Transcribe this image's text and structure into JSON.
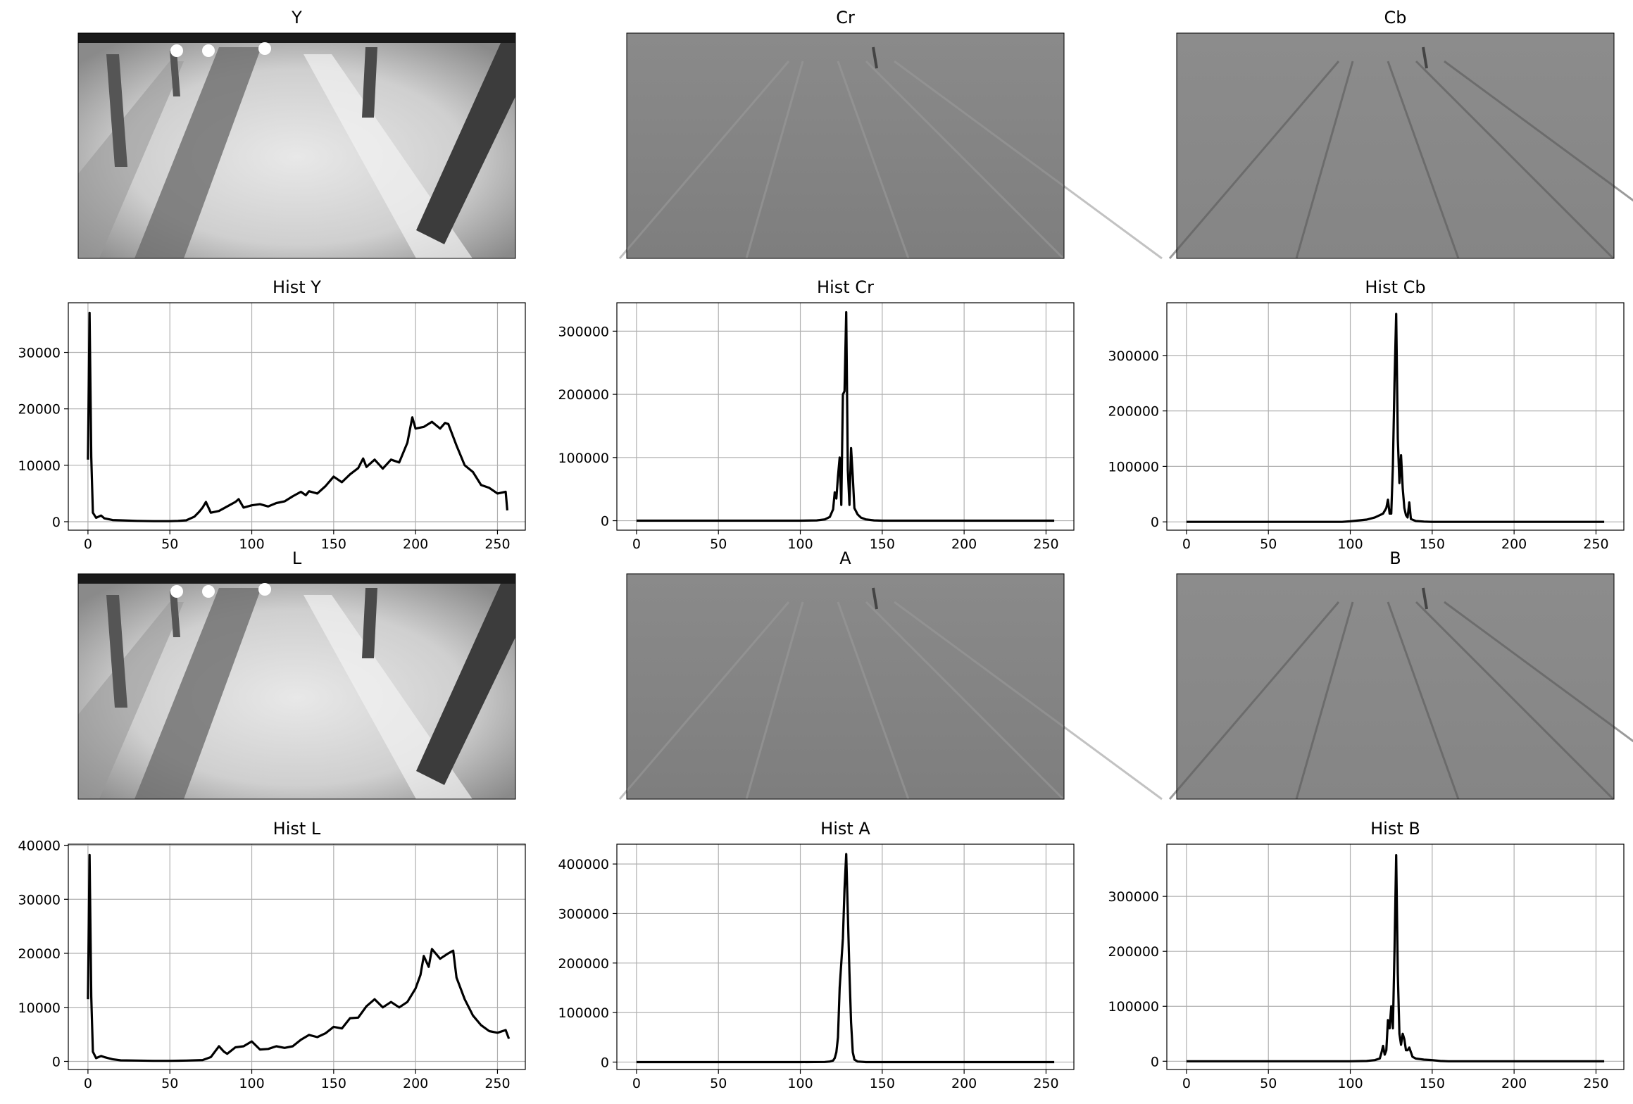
{
  "figure": {
    "image_panels": [
      {
        "title": "Y",
        "kind": "luma"
      },
      {
        "title": "Cr",
        "kind": "chroma"
      },
      {
        "title": "Cb",
        "kind": "chroma-b"
      },
      {
        "title": "L",
        "kind": "luma"
      },
      {
        "title": "A",
        "kind": "chroma"
      },
      {
        "title": "B",
        "kind": "chroma-b"
      }
    ]
  },
  "chart_data": [
    {
      "type": "line",
      "title": "Hist Y",
      "xlabel": "",
      "ylabel": "",
      "xlim": [
        -12,
        267
      ],
      "ylim": [
        -1500,
        38800
      ],
      "xticks": [
        0,
        50,
        100,
        150,
        200,
        250
      ],
      "yticks": [
        0,
        10000,
        20000,
        30000
      ],
      "grid": true,
      "line_color": "#000000",
      "x": [
        0,
        1,
        2,
        3,
        5,
        8,
        10,
        15,
        20,
        30,
        40,
        50,
        55,
        60,
        65,
        68,
        70,
        72,
        75,
        80,
        85,
        90,
        92,
        95,
        100,
        105,
        110,
        115,
        120,
        125,
        130,
        133,
        135,
        140,
        145,
        150,
        155,
        160,
        165,
        168,
        170,
        175,
        180,
        185,
        190,
        195,
        198,
        200,
        205,
        210,
        215,
        218,
        220,
        225,
        230,
        235,
        240,
        245,
        250,
        255,
        256
      ],
      "y": [
        11000,
        37000,
        11500,
        1600,
        700,
        1100,
        600,
        300,
        250,
        150,
        100,
        100,
        150,
        250,
        900,
        1800,
        2500,
        3500,
        1600,
        1900,
        2700,
        3500,
        4000,
        2500,
        2900,
        3100,
        2700,
        3300,
        3600,
        4500,
        5300,
        4700,
        5400,
        5000,
        6300,
        8000,
        7000,
        8400,
        9500,
        11200,
        9700,
        11000,
        9400,
        11000,
        10500,
        14000,
        18500,
        16500,
        16800,
        17700,
        16500,
        17500,
        17300,
        13500,
        10000,
        8800,
        6500,
        6000,
        5000,
        5300,
        2000
      ]
    },
    {
      "type": "line",
      "title": "Hist Cr",
      "xlabel": "",
      "ylabel": "",
      "xlim": [
        -12,
        267
      ],
      "ylim": [
        -15000,
        345000
      ],
      "xticks": [
        0,
        50,
        100,
        150,
        200,
        250
      ],
      "yticks": [
        0,
        100000,
        200000,
        300000
      ],
      "grid": true,
      "line_color": "#000000",
      "x": [
        0,
        50,
        100,
        110,
        115,
        118,
        120,
        121,
        122,
        123,
        124,
        125,
        126,
        127,
        128,
        129,
        130,
        131,
        132,
        133,
        135,
        137,
        140,
        145,
        150,
        200,
        255
      ],
      "y": [
        0,
        0,
        0,
        500,
        2000,
        6000,
        18000,
        45000,
        35000,
        70000,
        100000,
        25000,
        200000,
        205000,
        330000,
        80000,
        25000,
        115000,
        70000,
        20000,
        10000,
        5000,
        2000,
        500,
        0,
        0,
        0
      ]
    },
    {
      "type": "line",
      "title": "Hist Cb",
      "xlabel": "",
      "ylabel": "",
      "xlim": [
        -12,
        267
      ],
      "ylim": [
        -15000,
        395000
      ],
      "xticks": [
        0,
        50,
        100,
        150,
        200,
        250
      ],
      "yticks": [
        0,
        100000,
        200000,
        300000
      ],
      "grid": true,
      "line_color": "#000000",
      "x": [
        0,
        50,
        95,
        100,
        110,
        115,
        118,
        120,
        122,
        123,
        124,
        125,
        126,
        127,
        128,
        129,
        130,
        131,
        132,
        133,
        134,
        135,
        136,
        137,
        140,
        145,
        150,
        200,
        255
      ],
      "y": [
        0,
        0,
        0,
        1000,
        4000,
        8000,
        12000,
        15000,
        25000,
        40000,
        15000,
        15000,
        100000,
        250000,
        375000,
        150000,
        70000,
        120000,
        60000,
        25000,
        12000,
        8000,
        35000,
        5000,
        1500,
        500,
        0,
        0,
        0
      ]
    },
    {
      "type": "line",
      "title": "Hist L",
      "xlabel": "",
      "ylabel": "",
      "xlim": [
        -12,
        267
      ],
      "ylim": [
        -1500,
        40200
      ],
      "xticks": [
        0,
        50,
        100,
        150,
        200,
        250
      ],
      "yticks": [
        0,
        10000,
        20000,
        30000,
        40000
      ],
      "grid": true,
      "line_color": "#000000",
      "x": [
        0,
        1,
        2,
        3,
        5,
        8,
        10,
        15,
        20,
        30,
        40,
        50,
        60,
        70,
        75,
        78,
        80,
        83,
        85,
        90,
        95,
        100,
        105,
        110,
        115,
        120,
        125,
        130,
        135,
        140,
        145,
        150,
        155,
        160,
        165,
        170,
        175,
        180,
        185,
        190,
        195,
        200,
        203,
        205,
        208,
        210,
        215,
        220,
        223,
        225,
        230,
        235,
        240,
        245,
        250,
        255,
        257
      ],
      "y": [
        11500,
        38200,
        12000,
        1800,
        600,
        1000,
        800,
        400,
        200,
        150,
        100,
        100,
        150,
        250,
        800,
        2000,
        2800,
        1800,
        1400,
        2600,
        2800,
        3700,
        2200,
        2300,
        2800,
        2500,
        2800,
        4000,
        4900,
        4500,
        5200,
        6400,
        6100,
        8000,
        8100,
        10200,
        11500,
        10000,
        11000,
        10000,
        11000,
        13500,
        16000,
        19500,
        17500,
        20800,
        19000,
        20000,
        20500,
        15500,
        11500,
        8500,
        6700,
        5600,
        5300,
        5800,
        4200
      ]
    },
    {
      "type": "line",
      "title": "Hist A",
      "xlabel": "",
      "ylabel": "",
      "xlim": [
        -12,
        267
      ],
      "ylim": [
        -15000,
        440000
      ],
      "xticks": [
        0,
        50,
        100,
        150,
        200,
        250
      ],
      "yticks": [
        0,
        100000,
        200000,
        300000,
        400000
      ],
      "grid": true,
      "line_color": "#000000",
      "x": [
        0,
        50,
        100,
        115,
        118,
        120,
        121,
        122,
        123,
        124,
        125,
        126,
        127,
        128,
        129,
        130,
        131,
        132,
        133,
        135,
        140,
        150,
        200,
        255
      ],
      "y": [
        0,
        0,
        0,
        200,
        1000,
        3000,
        8000,
        20000,
        50000,
        150000,
        200000,
        250000,
        350000,
        420000,
        300000,
        180000,
        80000,
        20000,
        5000,
        1000,
        0,
        0,
        0,
        0
      ]
    },
    {
      "type": "line",
      "title": "Hist B",
      "xlabel": "",
      "ylabel": "",
      "xlim": [
        -12,
        267
      ],
      "ylim": [
        -15000,
        395000
      ],
      "xticks": [
        0,
        50,
        100,
        150,
        200,
        250
      ],
      "yticks": [
        0,
        100000,
        200000,
        300000
      ],
      "grid": true,
      "line_color": "#000000",
      "x": [
        0,
        50,
        100,
        110,
        115,
        118,
        119,
        120,
        121,
        122,
        123,
        124,
        125,
        126,
        127,
        128,
        129,
        130,
        131,
        132,
        133,
        134,
        135,
        136,
        138,
        140,
        145,
        150,
        155,
        160,
        200,
        255
      ],
      "y": [
        0,
        0,
        0,
        500,
        2000,
        5000,
        15000,
        28000,
        12000,
        20000,
        75000,
        60000,
        100000,
        60000,
        200000,
        375000,
        160000,
        50000,
        30000,
        50000,
        40000,
        20000,
        20000,
        25000,
        8000,
        5000,
        3000,
        2000,
        500,
        0,
        0,
        0
      ]
    }
  ]
}
